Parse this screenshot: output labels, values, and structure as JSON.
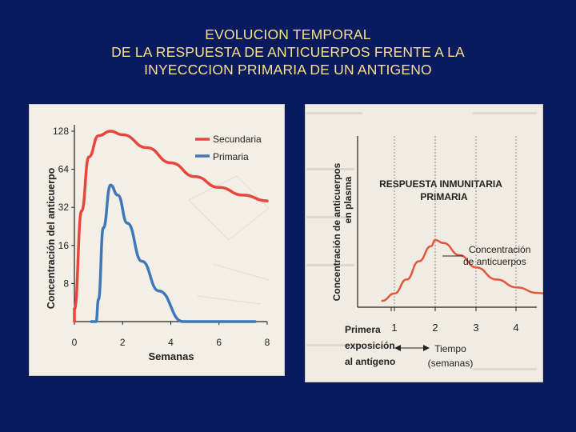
{
  "slide": {
    "title_lines": [
      "EVOLUCION TEMPORAL",
      "DE LA RESPUESTA DE ANTICUERPOS FRENTE A LA",
      "INYECCCION PRIMARIA DE UN ANTIGENO"
    ]
  },
  "chart_data": [
    {
      "type": "line",
      "ylabel": "Concentración del anticuerpo",
      "xlabel": "Semanas",
      "x_ticks": [
        "0",
        "2",
        "4",
        "6",
        "8"
      ],
      "y_ticks": [
        "8",
        "16",
        "32",
        "64",
        "128"
      ],
      "y_scale": "log2",
      "xlim": [
        0,
        8
      ],
      "legend_position": "top-right",
      "series": [
        {
          "name": "Secundaria",
          "color": "#e8463c",
          "x": [
            0,
            0.3,
            0.6,
            1.0,
            1.5,
            2.0,
            3.0,
            4.0,
            5.0,
            6.0,
            7.0,
            8.0
          ],
          "y": [
            5,
            30,
            80,
            118,
            128,
            120,
            95,
            72,
            56,
            46,
            40,
            36
          ]
        },
        {
          "name": "Primaria",
          "color": "#3d78b8",
          "x": [
            0.7,
            0.9,
            1.0,
            1.2,
            1.5,
            1.8,
            2.2,
            2.8,
            3.5,
            4.5,
            5.5,
            6.5,
            7.5
          ],
          "y": [
            2,
            3,
            6,
            22,
            48,
            40,
            24,
            12,
            7,
            4,
            3,
            2.6,
            2.5
          ]
        }
      ]
    },
    {
      "type": "line",
      "title_lines": [
        "RESPUESTA INMUNITARIA",
        "PRIMARIA"
      ],
      "ylabel_lines": [
        "Concentración de anticuerpos",
        "en plasma"
      ],
      "x_ticks": [
        "1",
        "2",
        "3",
        "4"
      ],
      "first_exposure_label": [
        "Primera",
        "exposición",
        "al antígeno"
      ],
      "xlabel_lines": [
        "Tiempo",
        "(semanas)"
      ],
      "annotation_lines": [
        "Concentración",
        "de anticuerpos"
      ],
      "xlim": [
        0,
        5
      ],
      "grid": "vertical",
      "series": [
        {
          "color": "#e3563c",
          "x": [
            0.7,
            1.0,
            1.3,
            1.6,
            1.9,
            2.0,
            2.2,
            2.6,
            3.0,
            3.5,
            4.0,
            4.5,
            5.0
          ],
          "y": [
            0.0,
            0.12,
            0.35,
            0.65,
            0.9,
            1.0,
            0.95,
            0.75,
            0.55,
            0.35,
            0.22,
            0.13,
            0.07
          ]
        }
      ]
    }
  ]
}
